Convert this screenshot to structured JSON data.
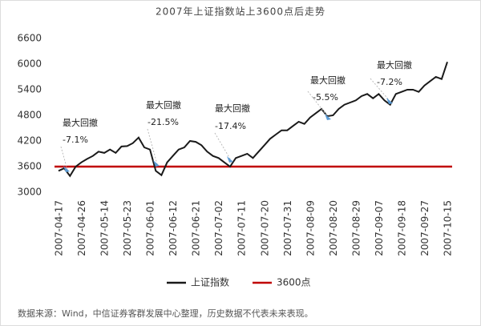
{
  "chart_data": {
    "type": "line",
    "title": "2007年上证指数站上3600点后走势",
    "categories": [
      "2007-04-17",
      null,
      null,
      null,
      "2007-04-26",
      null,
      null,
      null,
      "2007-05-14",
      null,
      null,
      null,
      "2007-05-23",
      null,
      null,
      null,
      "2007-06-01",
      null,
      null,
      null,
      "2007-06-12",
      null,
      null,
      null,
      "2007-06-21",
      null,
      null,
      null,
      "2007-07-02",
      null,
      null,
      null,
      "2007-07-11",
      null,
      null,
      null,
      "2007-07-20",
      null,
      null,
      null,
      "2007-07-31",
      null,
      null,
      null,
      "2007-08-09",
      null,
      null,
      null,
      "2007-08-20",
      null,
      null,
      null,
      "2007-08-29",
      null,
      null,
      null,
      "2007-09-07",
      null,
      null,
      null,
      "2007-09-18",
      null,
      null,
      null,
      "2007-09-27",
      null,
      null,
      null,
      "2007-10-15"
    ],
    "series": [
      {
        "name": "上证指数",
        "color": "#1a1a1a",
        "values": [
          3500,
          3560,
          3380,
          3600,
          3700,
          3780,
          3850,
          3950,
          3920,
          4000,
          3920,
          4070,
          4080,
          4150,
          4280,
          4050,
          4000,
          3500,
          3400,
          3700,
          3850,
          4000,
          4050,
          4200,
          4180,
          4100,
          3950,
          3850,
          3800,
          3700,
          3600,
          3800,
          3850,
          3900,
          3800,
          3950,
          4100,
          4250,
          4350,
          4450,
          4450,
          4550,
          4650,
          4600,
          4750,
          4850,
          4950,
          4780,
          4800,
          4950,
          5050,
          5100,
          5150,
          5250,
          5300,
          5200,
          5300,
          5150,
          5050,
          5300,
          5350,
          5400,
          5400,
          5350,
          5500,
          5600,
          5700,
          5650,
          6050
        ]
      }
    ],
    "reference_line": {
      "name": "3600点",
      "value": 3600,
      "color": "#c00000"
    },
    "ylim": [
      3000,
      6600
    ],
    "yticks": [
      3000,
      3600,
      4200,
      4800,
      5400,
      6000,
      6600
    ],
    "annotations": [
      {
        "text": "最大回撤",
        "label": "-7.1%"
      },
      {
        "text": "最大回撤",
        "label": "-21.5%"
      },
      {
        "text": "最大回撤",
        "label": "-17.4%"
      },
      {
        "text": "最大回撤",
        "label": "-5.5%"
      },
      {
        "text": "最大回撤",
        "label": "-7.2%"
      }
    ],
    "source": "数据来源：Wind，中信证券客群发展中心整理，历史数据不代表未来表现。"
  }
}
